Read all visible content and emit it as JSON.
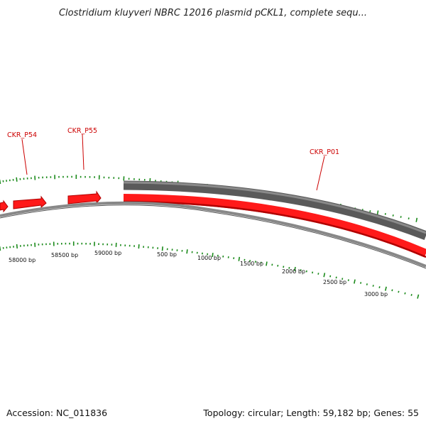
{
  "title": "Clostridium kluyveri NBRC 12016 plasmid pCKL1, complete sequ...",
  "accession_text": "Accession: NC_011836",
  "stats_text": "Topology: circular; Length: 59,182 bp; Genes: 55",
  "genome_length_bp": 59182,
  "colors": {
    "forward_gene": "#ff1a1a",
    "reverse_gene": "#666666",
    "backbone": "#888888",
    "ticks": "#1a8a1a",
    "label": "#cc0000"
  },
  "gene_labels": [
    {
      "id": "label-ckr-p54",
      "text": "CKR_P54"
    },
    {
      "id": "label-ckr-p55",
      "text": "CKR_P55"
    },
    {
      "id": "label-ckr-p01",
      "text": "CKR_P01"
    }
  ],
  "bp_labels": [
    "58000 bp",
    "58500 bp",
    "59000 bp",
    "500 bp",
    "1000 bp",
    "1500 bp",
    "2000 bp",
    "2500 bp",
    "3000 bp"
  ]
}
